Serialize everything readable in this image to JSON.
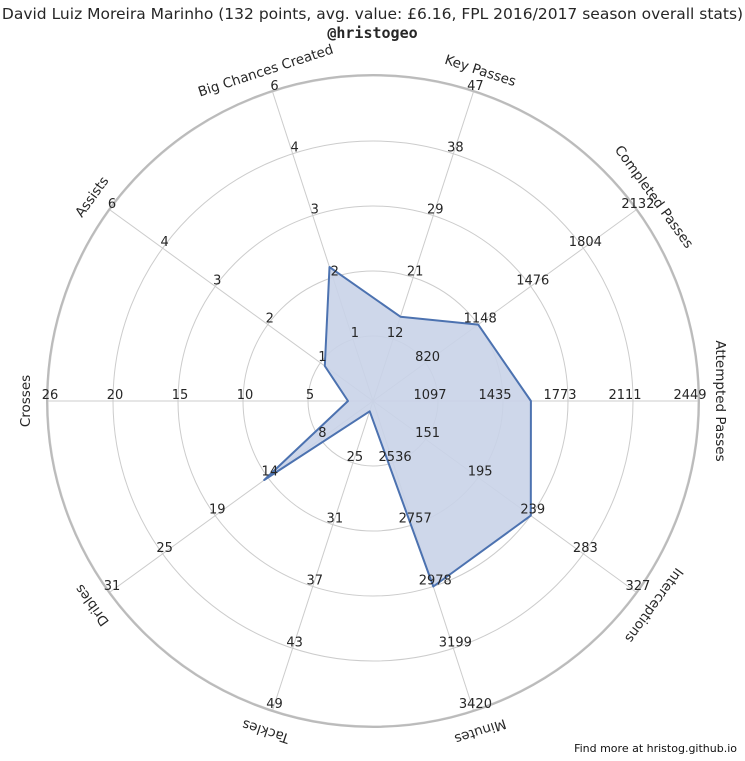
{
  "chart_data": {
    "type": "radar",
    "title": "David Luiz Moreira Marinho (132 points, avg. value: £6.16, FPL 2016/2017 season overall stats)",
    "subtitle": "@hristogeo",
    "footer": "Find more at hristog.github.io",
    "grid": true,
    "axes": [
      {
        "name": "Attempted Passes",
        "ticks": [
          "1097",
          "1435",
          "1773",
          "2111",
          "2449"
        ],
        "range": [
          759,
          2449
        ],
        "value": 1580
      },
      {
        "name": "Completed Passes",
        "ticks": [
          "820",
          "1148",
          "1476",
          "1804",
          "2132"
        ],
        "range": [
          492,
          2132
        ],
        "value": 1148
      },
      {
        "name": "Key Passes",
        "ticks": [
          "12",
          "21",
          "29",
          "38",
          "47"
        ],
        "range": [
          3,
          47
        ],
        "value": 15
      },
      {
        "name": "Big Chances Created",
        "ticks": [
          "1",
          "2",
          "3",
          "4",
          "6"
        ],
        "range": [
          0,
          6
        ],
        "value": 2.6
      },
      {
        "name": "Assists",
        "ticks": [
          "1",
          "2",
          "3",
          "4",
          "6"
        ],
        "range": [
          0,
          6
        ],
        "value": 1.1
      },
      {
        "name": "Crosses",
        "ticks": [
          "5",
          "10",
          "15",
          "20",
          "26"
        ],
        "range": [
          0,
          26
        ],
        "value": 2
      },
      {
        "name": "Dribles",
        "ticks": [
          "8",
          "14",
          "19",
          "25",
          "31"
        ],
        "range": [
          2,
          31
        ],
        "value": 14
      },
      {
        "name": "Tackles",
        "ticks": [
          "25",
          "31",
          "37",
          "43",
          "49"
        ],
        "range": [
          19,
          49
        ],
        "value": 20
      },
      {
        "name": "Minutes",
        "ticks": [
          "2536",
          "2757",
          "2978",
          "3199",
          "3420"
        ],
        "range": [
          2315,
          3420
        ],
        "value": 2978
      },
      {
        "name": "Interceptions",
        "ticks": [
          "151",
          "195",
          "239",
          "283",
          "327"
        ],
        "range": [
          107,
          327
        ],
        "value": 239
      }
    ],
    "colors": {
      "fill": "#c9d3e8",
      "line": "#4c72b0",
      "grid": "#cccccc",
      "outer": "#bbbbbb"
    }
  }
}
